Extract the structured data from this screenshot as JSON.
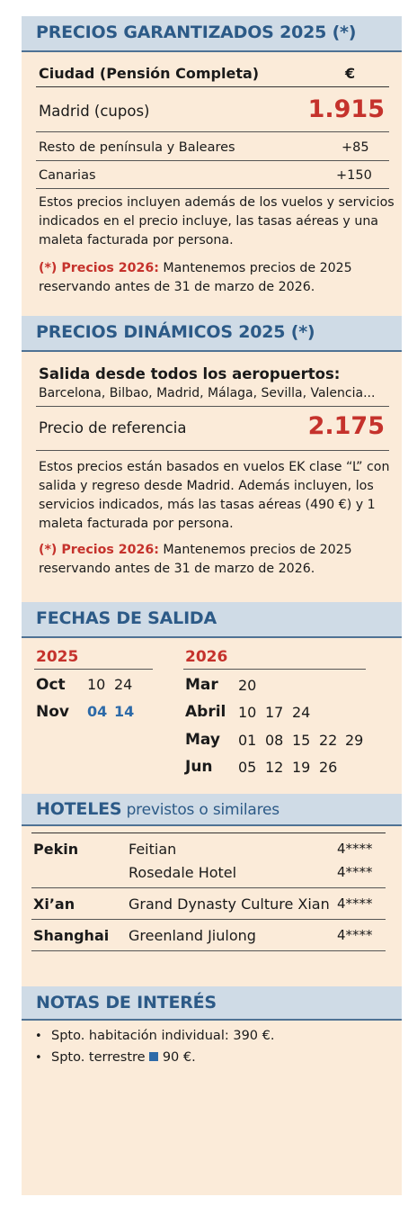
{
  "precios_garantizados": {
    "title": "PRECIOS GARANTIZADOS 2025 (*)",
    "col_city": "Ciudad  (Pensión Completa)",
    "col_price": "€",
    "rows": [
      {
        "label": "Madrid (cupos)",
        "value": "1.915"
      },
      {
        "label": "Resto de península y Baleares",
        "value": "+85"
      },
      {
        "label": "Canarias",
        "value": "+150"
      }
    ],
    "note_1": "Estos precios incluyen además de los vuelos y servicios",
    "note_2": "indicados en el precio incluye, las tasas aéreas y una",
    "note_3": "maleta facturada por persona.",
    "promo_label": "(*)  Precios 2026:",
    "promo_text_1": " Mantenemos precios de 2025",
    "promo_text_2": "reservando antes de 31 de marzo de 2026."
  },
  "precios_dinamicos": {
    "title": "PRECIOS DINÁMICOS 2025 (*)",
    "salida_title": "Salida desde todos los aeropuertos:",
    "salida_cities": "Barcelona, Bilbao, Madrid, Málaga, Sevilla, Valencia...",
    "ref_label": "Precio de referencia",
    "ref_value": "2.175",
    "note_1": "Estos precios están basados en vuelos EK clase “L” con",
    "note_2": "salida y regreso desde Madrid. Además incluyen, los",
    "note_3": "servicios indicados, más las tasas aéreas (490 €) y 1",
    "note_4": "maleta facturada por persona.",
    "promo_label": "(*)  Precios 2026:",
    "promo_text_1": " Mantenemos precios de 2025",
    "promo_text_2": "reservando antes de 31 de marzo de 2026."
  },
  "fechas": {
    "title": "FECHAS DE SALIDA",
    "year_a": "2025",
    "year_b": "2026",
    "a_rows": [
      {
        "month": "Oct",
        "days": [
          "10",
          "24"
        ]
      },
      {
        "month": "Nov",
        "days": [
          "04",
          "14"
        ]
      }
    ],
    "b_rows": [
      {
        "month": "Mar",
        "days": [
          "20"
        ]
      },
      {
        "month": "Abril",
        "days": [
          "10",
          "17",
          "24"
        ]
      },
      {
        "month": "May",
        "days": [
          "01",
          "08",
          "15",
          "22",
          "29"
        ]
      },
      {
        "month": "Jun",
        "days": [
          "05",
          "12",
          "19",
          "26"
        ]
      }
    ]
  },
  "hoteles": {
    "title": "HOTELES",
    "subtitle": " previstos o similares",
    "rows": [
      {
        "city": "Pekin",
        "hotel": "Feitian",
        "cat": "4****"
      },
      {
        "city": "",
        "hotel": "Rosedale Hotel",
        "cat": "4****"
      },
      {
        "city": "Xi’an",
        "hotel": "Grand Dynasty Culture Xian",
        "cat": "4****"
      },
      {
        "city": "Shanghai",
        "hotel": "Greenland Jiulong",
        "cat": "4****"
      }
    ]
  },
  "notas": {
    "title": "NOTAS DE INTERÉS",
    "item_1": "Spto. habitación individual: 390 €.",
    "item_2a": "Spto. terrestre",
    "item_2b": " 90 €.",
    "bullet": "•"
  },
  "colors": {
    "accent_red": "#c5322c",
    "accent_blue": "#2c5a87",
    "panel_bg": "#fbebd9",
    "header_bg": "#cfdbe6"
  }
}
